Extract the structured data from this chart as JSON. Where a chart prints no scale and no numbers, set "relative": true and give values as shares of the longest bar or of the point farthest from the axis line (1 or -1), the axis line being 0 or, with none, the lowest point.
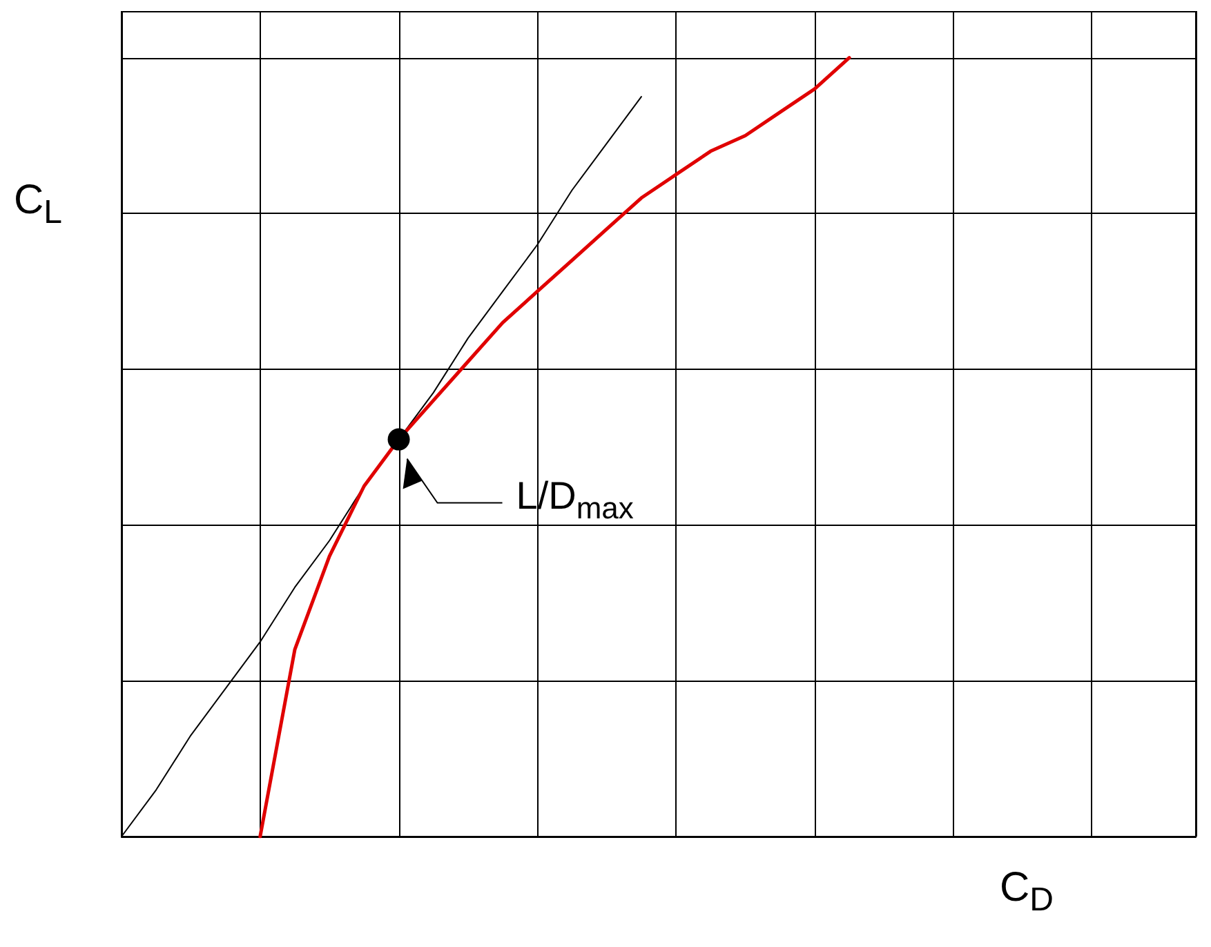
{
  "chart_data": {
    "type": "line",
    "xlabel": "C$_{D}$",
    "ylabel": "C$_{L}$",
    "relative": true,
    "grid": true,
    "categories": [
      null,
      null,
      null,
      null,
      null,
      null,
      null,
      null,
      null,
      null,
      null,
      null,
      null,
      null,
      null,
      null,
      null,
      null,
      null,
      null,
      null,
      null,
      null,
      null,
      null,
      null,
      null,
      null,
      null,
      null,
      null,
      null
    ],
    "series": [
      {
        "color": "#e00000",
        "marker": "none",
        "values": [
          null,
          null,
          null,
          null,
          0,
          0.24,
          0.36,
          0.45,
          0.51,
          0.56,
          0.61,
          0.66,
          0.7,
          0.74,
          0.78,
          0.82,
          0.85,
          0.88,
          0.9,
          0.93,
          0.96,
          1.0,
          null,
          null,
          null,
          null,
          null,
          null,
          null,
          null,
          null,
          null
        ]
      },
      {
        "color": "#000000",
        "marker": "none",
        "values": [
          0,
          0.06,
          0.13,
          0.19,
          0.25,
          0.32,
          0.38,
          0.45,
          0.51,
          0.57,
          0.64,
          0.7,
          0.76,
          0.83,
          0.89,
          0.95,
          null,
          null,
          null,
          null,
          null,
          null,
          null,
          null,
          null,
          null,
          null,
          null,
          null,
          null,
          null,
          null
        ]
      }
    ],
    "annotations": [
      "L/D$_{max}$"
    ]
  }
}
